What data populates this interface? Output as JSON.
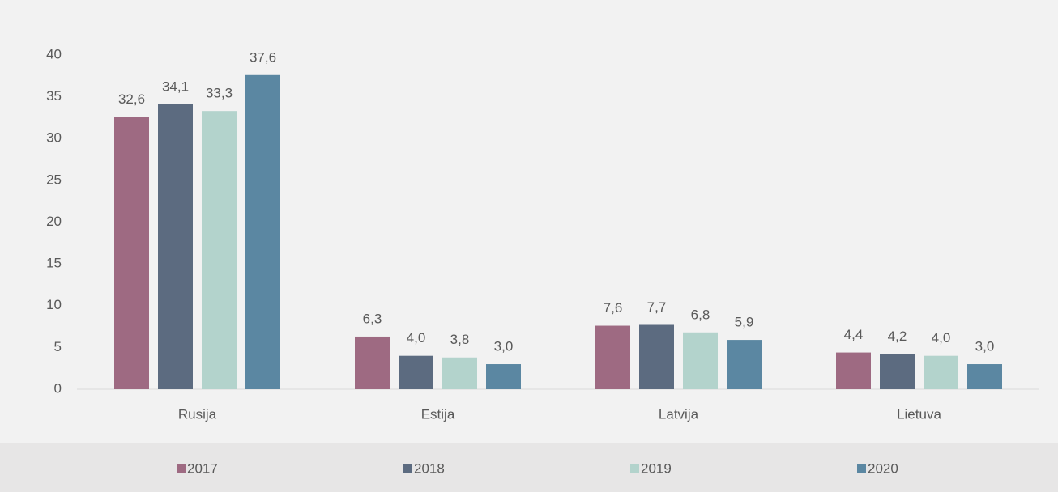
{
  "chart_data": {
    "type": "bar",
    "categories": [
      "Rusija",
      "Estija",
      "Latvija",
      "Lietuva"
    ],
    "series": [
      {
        "name": "2017",
        "color": "#9e6a82",
        "values": [
          32.6,
          6.3,
          7.6,
          4.4
        ],
        "value_labels": [
          "32,6",
          "6,3",
          "7,6",
          "4,4"
        ]
      },
      {
        "name": "2018",
        "color": "#5c6b80",
        "values": [
          34.1,
          4.0,
          7.7,
          4.2
        ],
        "value_labels": [
          "34,1",
          "4,0",
          "7,7",
          "4,2"
        ]
      },
      {
        "name": "2019",
        "color": "#b3d3cc",
        "values": [
          33.3,
          3.8,
          6.8,
          4.0
        ],
        "value_labels": [
          "33,3",
          "3,8",
          "6,8",
          "4,0"
        ]
      },
      {
        "name": "2020",
        "color": "#5b87a2",
        "values": [
          37.6,
          3.0,
          5.9,
          3.0
        ],
        "value_labels": [
          "37,6",
          "3,0",
          "5,9",
          "3,0"
        ]
      }
    ],
    "ylim": [
      0,
      40
    ],
    "yticks": [
      0,
      5,
      10,
      15,
      20,
      25,
      30,
      35,
      40
    ],
    "legend": "bottom"
  }
}
